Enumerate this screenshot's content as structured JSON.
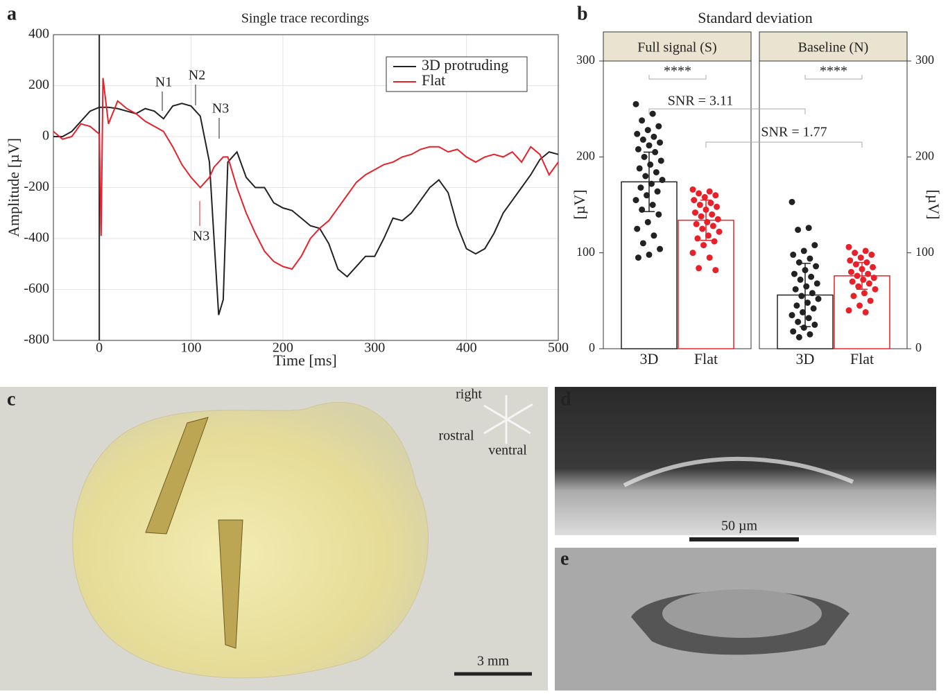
{
  "chart_data": [
    {
      "type": "line",
      "panel": "a",
      "title": "Single trace recordings",
      "xlabel": "Time [ms]",
      "ylabel": "Amplitude [µV]",
      "x": [
        -50,
        -40,
        -30,
        -20,
        -10,
        0,
        2,
        4,
        10,
        20,
        30,
        40,
        50,
        60,
        70,
        80,
        90,
        100,
        110,
        120,
        125,
        130,
        135,
        140,
        150,
        160,
        170,
        180,
        190,
        200,
        210,
        220,
        230,
        240,
        250,
        260,
        270,
        280,
        290,
        300,
        310,
        320,
        330,
        340,
        350,
        360,
        370,
        380,
        390,
        400,
        410,
        420,
        430,
        440,
        450,
        460,
        470,
        480,
        490,
        500
      ],
      "series": [
        {
          "name": "3D protruding",
          "color": "#222222",
          "values": [
            0,
            0,
            20,
            60,
            100,
            115,
            115,
            115,
            115,
            110,
            100,
            90,
            110,
            100,
            70,
            120,
            130,
            120,
            80,
            -100,
            -400,
            -700,
            -640,
            -100,
            -60,
            -160,
            -200,
            -200,
            -260,
            -280,
            -290,
            -320,
            -350,
            -360,
            -420,
            -520,
            -550,
            -510,
            -470,
            -470,
            -400,
            -320,
            -330,
            -300,
            -250,
            -200,
            -170,
            -220,
            -350,
            -440,
            -460,
            -440,
            -380,
            -300,
            -250,
            -200,
            -150,
            -90,
            -60,
            -70
          ]
        },
        {
          "name": "Flat",
          "color": "#e8202a",
          "values": [
            20,
            -10,
            0,
            50,
            40,
            10,
            -390,
            230,
            50,
            140,
            110,
            90,
            60,
            40,
            20,
            -40,
            -110,
            -160,
            -200,
            -160,
            -120,
            -100,
            -80,
            -80,
            -200,
            -300,
            -380,
            -450,
            -490,
            -510,
            -520,
            -470,
            -400,
            -360,
            -330,
            -280,
            -230,
            -180,
            -150,
            -130,
            -110,
            -100,
            -80,
            -70,
            -50,
            -40,
            -40,
            -60,
            -50,
            -80,
            -100,
            -80,
            -70,
            -80,
            -60,
            -100,
            -40,
            -70,
            -150,
            -100
          ]
        }
      ],
      "vline": 0,
      "xlim": [
        -50,
        500
      ],
      "xticks": [
        0,
        100,
        200,
        300,
        400,
        500
      ],
      "ylim": [
        -800,
        400
      ],
      "yticks": [
        -800,
        -600,
        -400,
        -200,
        0,
        200,
        400
      ],
      "grid": true,
      "legend": "upper right",
      "annotations": [
        {
          "text": "N1",
          "color": "#222222"
        },
        {
          "text": "N2",
          "color": "#222222"
        },
        {
          "text": "N3",
          "color": "#222222"
        },
        {
          "text": "N3",
          "color": "#e8202a"
        }
      ]
    },
    {
      "type": "bar",
      "panel": "b",
      "title": "Standard deviation",
      "ylabel": "[µV]",
      "ylim": [
        0,
        300
      ],
      "yticks": [
        0,
        100,
        200,
        300
      ],
      "colors": [
        "#222222",
        "#e8202a"
      ],
      "facets": [
        {
          "name": "Full signal (S)",
          "categories": [
            "3D",
            "Flat"
          ],
          "values": [
            174,
            134
          ],
          "errors": [
            31,
            21
          ],
          "points": [
            [
              255,
              245,
              238,
              232,
              228,
              224,
              221,
              218,
              215,
              212,
              208,
              205,
              200,
              196,
              192,
              188,
              184,
              180,
              176,
              172,
              168,
              164,
              160,
              155,
              150,
              145,
              140,
              132,
              125,
              118,
              110,
              104,
              98,
              95
            ],
            [
              166,
              164,
              162,
              160,
              158,
              155,
              152,
              150,
              148,
              145,
              142,
              140,
              138,
              135,
              132,
              130,
              128,
              125,
              122,
              118,
              115,
              112,
              108,
              100,
              95,
              84,
              82
            ]
          ]
        },
        {
          "name": "Baseline (N)",
          "categories": [
            "3D",
            "Flat"
          ],
          "values": [
            56,
            76
          ],
          "errors": [
            33,
            14
          ],
          "points": [
            [
              153,
              126,
              124,
              108,
              102,
              98,
              94,
              90,
              86,
              82,
              78,
              75,
              72,
              68,
              65,
              62,
              58,
              55,
              52,
              48,
              45,
              42,
              38,
              35,
              32,
              28,
              25,
              22,
              18,
              15,
              12
            ],
            [
              106,
              102,
              100,
              98,
              95,
              92,
              90,
              88,
              85,
              83,
              80,
              78,
              76,
              74,
              72,
              70,
              68,
              65,
              62,
              58,
              55,
              50,
              45,
              40,
              38
            ]
          ]
        }
      ],
      "significance": "****",
      "snr": [
        "SNR = 3.11",
        "SNR = 1.77"
      ]
    }
  ],
  "photos": {
    "c": {
      "label": "c",
      "directions": [
        "right",
        "rostral",
        "ventral"
      ],
      "scale": "3 mm"
    },
    "d": {
      "label": "d",
      "scale": "50 µm"
    },
    "e": {
      "label": "e"
    }
  }
}
